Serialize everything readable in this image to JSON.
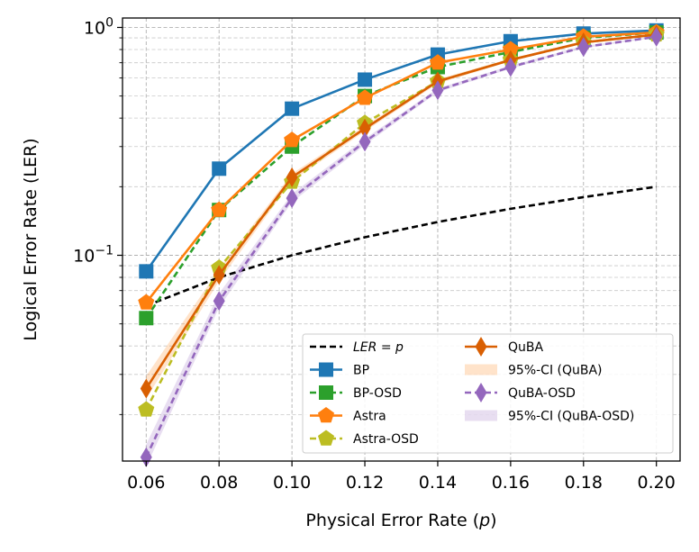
{
  "chart_data": {
    "type": "line",
    "title": "",
    "xlabel": "Physical Error Rate (p)",
    "ylabel": "Logical Error Rate (LER)",
    "xscale": "linear",
    "yscale": "log",
    "xlim": [
      0.0535,
      0.2065
    ],
    "ylim": [
      0.0125,
      1.1
    ],
    "grid": true,
    "legend_position": "lower-right",
    "x": [
      0.06,
      0.08,
      0.1,
      0.12,
      0.14,
      0.16,
      0.18,
      0.2
    ],
    "x_tick_labels": [
      "0.06",
      "0.08",
      "0.10",
      "0.12",
      "0.14",
      "0.16",
      "0.18",
      "0.20"
    ],
    "y_ticks": [
      {
        "value": 1,
        "base": "10",
        "exp": "0"
      },
      {
        "value": 0.1,
        "base": "10",
        "exp": "−1"
      }
    ],
    "series": [
      {
        "name": "LER = p",
        "label_prefix": "LER = ",
        "label_var": "p",
        "color": "#000000",
        "dash": "7 4",
        "marker": "none",
        "values": [
          0.06,
          0.08,
          0.1,
          0.12,
          0.14,
          0.16,
          0.18,
          0.2
        ]
      },
      {
        "name": "BP",
        "color": "#1f77b4",
        "dash": "",
        "marker": "square",
        "values": [
          0.085,
          0.24,
          0.44,
          0.59,
          0.76,
          0.87,
          0.94,
          0.97
        ]
      },
      {
        "name": "BP-OSD",
        "color": "#2ca02c",
        "dash": "7 4",
        "marker": "square",
        "values": [
          0.053,
          0.158,
          0.3,
          0.5,
          0.67,
          0.78,
          0.9,
          0.95
        ]
      },
      {
        "name": "Astra",
        "color": "#ff7f0e",
        "dash": "",
        "marker": "pentagon",
        "values": [
          0.062,
          0.158,
          0.32,
          0.49,
          0.7,
          0.8,
          0.91,
          0.95
        ]
      },
      {
        "name": "Astra-OSD",
        "color": "#bcbd22",
        "dash": "7 4",
        "marker": "pentagon",
        "values": [
          0.021,
          0.088,
          0.21,
          0.38,
          0.58,
          0.72,
          0.86,
          0.93
        ]
      },
      {
        "name": "QuBA",
        "color": "#d95f02",
        "dash": "",
        "marker": "thin-diamond",
        "values": [
          0.026,
          0.082,
          0.22,
          0.36,
          0.58,
          0.72,
          0.86,
          0.93
        ]
      },
      {
        "name": "QuBA-OSD",
        "color": "#9467bd",
        "dash": "7 4",
        "marker": "thin-diamond",
        "values": [
          0.013,
          0.063,
          0.178,
          0.315,
          0.53,
          0.67,
          0.82,
          0.91
        ]
      }
    ],
    "confidence_bands": [
      {
        "name": "95%-CI (QuBA)",
        "color": "#ff7f0e",
        "opacity": 0.22,
        "lower": [
          0.0235,
          0.077,
          0.212,
          0.35,
          0.567,
          0.71,
          0.852,
          0.925
        ],
        "upper": [
          0.0295,
          0.087,
          0.228,
          0.37,
          0.593,
          0.73,
          0.868,
          0.935
        ]
      },
      {
        "name": "95%-CI (QuBA-OSD)",
        "color": "#9467bd",
        "opacity": 0.22,
        "lower": [
          0.0118,
          0.059,
          0.171,
          0.305,
          0.52,
          0.66,
          0.81,
          0.905
        ],
        "upper": [
          0.0148,
          0.068,
          0.186,
          0.325,
          0.54,
          0.68,
          0.83,
          0.915
        ]
      }
    ]
  }
}
